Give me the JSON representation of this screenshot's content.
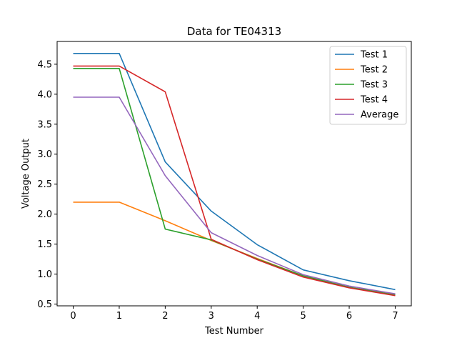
{
  "chart_data": {
    "type": "line",
    "title": "Data for TE04313",
    "xlabel": "Test Number",
    "ylabel": "Voltage Output",
    "x": [
      0,
      1,
      2,
      3,
      4,
      5,
      6,
      7
    ],
    "xticks": [
      "0",
      "1",
      "2",
      "3",
      "4",
      "5",
      "6",
      "7"
    ],
    "yticks": [
      "0.5",
      "1.0",
      "1.5",
      "2.0",
      "2.5",
      "3.0",
      "3.5",
      "4.0",
      "4.5"
    ],
    "xlim": [
      -0.35,
      7.35
    ],
    "ylim": [
      0.47,
      4.88
    ],
    "grid": false,
    "legend_position": "top-right",
    "series": [
      {
        "name": "Test 1",
        "color": "#1f77b4",
        "values": [
          4.68,
          4.68,
          2.87,
          2.05,
          1.49,
          1.07,
          0.89,
          0.74
        ]
      },
      {
        "name": "Test 2",
        "color": "#ff7f0e",
        "values": [
          2.2,
          2.2,
          1.89,
          1.56,
          1.26,
          0.97,
          0.78,
          0.66
        ]
      },
      {
        "name": "Test 3",
        "color": "#2ca02c",
        "values": [
          4.43,
          4.43,
          1.75,
          1.57,
          1.25,
          0.97,
          0.78,
          0.65
        ]
      },
      {
        "name": "Test 4",
        "color": "#d62728",
        "values": [
          4.47,
          4.47,
          4.04,
          1.58,
          1.24,
          0.95,
          0.77,
          0.64
        ]
      },
      {
        "name": "Average",
        "color": "#9467bd",
        "values": [
          3.95,
          3.95,
          2.64,
          1.69,
          1.31,
          0.99,
          0.8,
          0.67
        ]
      }
    ]
  }
}
